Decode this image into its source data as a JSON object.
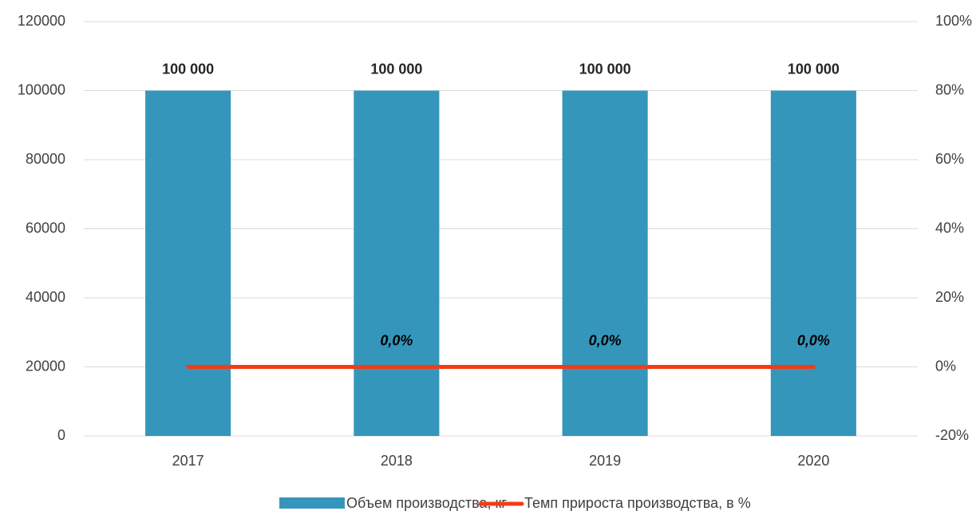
{
  "chart_data": {
    "type": "bar",
    "categories": [
      "2017",
      "2018",
      "2019",
      "2020"
    ],
    "series": [
      {
        "name": "Объем производства, кг",
        "type": "bar",
        "color": "#3596bb",
        "values": [
          100000,
          100000,
          100000,
          100000
        ],
        "value_labels": [
          "100 000",
          "100 000",
          "100 000",
          "100 000"
        ]
      },
      {
        "name": "Темп прироста производства, в %",
        "type": "line",
        "axis": "y2",
        "color": "#f23c16",
        "values": [
          0,
          0,
          0,
          0
        ],
        "value_labels": [
          null,
          "0,0%",
          "0,0%",
          "0,0%"
        ]
      }
    ],
    "ylim": [
      0,
      120000
    ],
    "yticks": [
      0,
      20000,
      40000,
      60000,
      80000,
      100000,
      120000
    ],
    "y2lim": [
      -20,
      100
    ],
    "y2ticks": [
      {
        "value": -20,
        "label": "-20%"
      },
      {
        "value": 0,
        "label": "0%"
      },
      {
        "value": 20,
        "label": "20%"
      },
      {
        "value": 40,
        "label": "40%"
      },
      {
        "value": 60,
        "label": "60%"
      },
      {
        "value": 80,
        "label": "80%"
      },
      {
        "value": 100,
        "label": "100%"
      }
    ],
    "grid": true,
    "legend": "bottom"
  }
}
